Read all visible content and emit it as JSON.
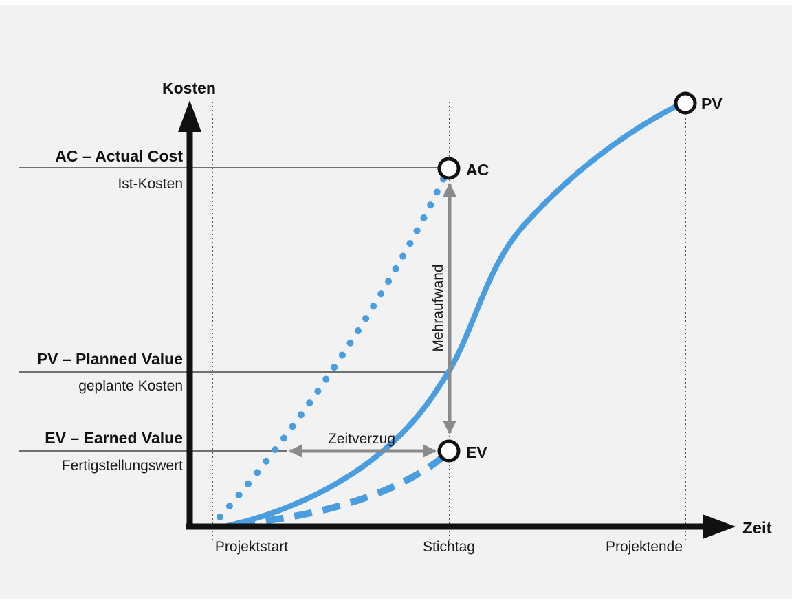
{
  "axes": {
    "y_label": "Kosten",
    "x_label": "Zeit",
    "x_ticks": [
      "Projektstart",
      "Stichtag",
      "Projektende"
    ]
  },
  "levels": [
    {
      "title": "AC – Actual Cost",
      "subtitle": "Ist-Kosten"
    },
    {
      "title": "PV – Planned Value",
      "subtitle": "geplante Kosten"
    },
    {
      "title": "EV – Earned Value",
      "subtitle": "Fertigstellungswert"
    }
  ],
  "points": {
    "pv": "PV",
    "ac": "AC",
    "ev": "EV"
  },
  "annotations": {
    "vertical_gap": "Mehraufwand",
    "horizontal_gap": "Zeitverzug"
  },
  "colors": {
    "curve": "#4a9ee0",
    "arrow": "#8a8a8a",
    "axis": "#111111",
    "background": "#f2f2f2"
  }
}
